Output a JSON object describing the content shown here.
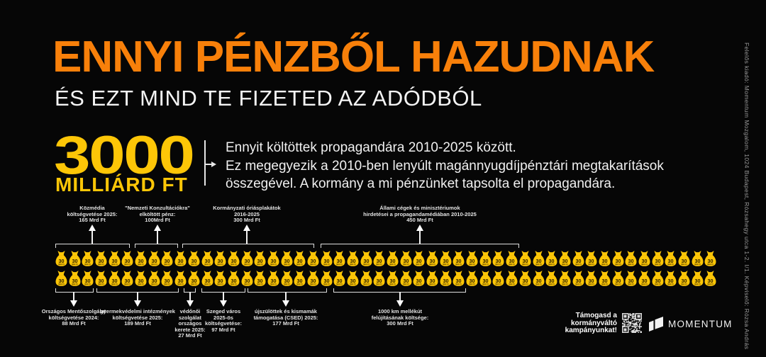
{
  "poster": {
    "headline": "ENNYI PÉNZBŐL HAZUDNAK",
    "subheadline": "ÉS EZT MIND TE FIZETED AZ ADÓDBÓL",
    "amount": {
      "number": "3000",
      "unit": "MILLIÁRD FT"
    },
    "description_lines": [
      "Ennyit költöttek propagandára 2010-2025 között.",
      "Ez megegyezik a 2010-ben lenyúlt magánnyugdíjpénztári megtakarítások",
      "összegével. A kormány a mi pénzünket tapsolta el propagandára."
    ],
    "imprint": "Felelős kiadó: Momentum Mozgalom, 1024 Budapest, Rózsahegy utca 1-2. I/1. Képviselő: Rózsa András",
    "cta_lines": [
      "Támogasd a",
      "kormányváltó",
      "kampányunkat!"
    ],
    "brand_name": "MOMENTUM",
    "colors": {
      "background": "#060606",
      "accent_orange": "#F8800A",
      "accent_yellow": "#FDC607",
      "text_white": "#F2F2F2"
    }
  },
  "chart_data": {
    "type": "pictogram",
    "title": "3000 MILLIÁRD FT — Ennyit költöttek propagandára 2010-2025 között",
    "icon": "money-bag",
    "icon_value": 30,
    "icon_label": "30",
    "icon_unit": "Mrd Ft",
    "total_value": 3000,
    "rows": 2,
    "icons_per_row": 50,
    "total_icons": 100,
    "top_groups": [
      {
        "value": 165,
        "label_lines": [
          "Közmédia",
          "költségvetése 2025:",
          "165 Mrd Ft"
        ]
      },
      {
        "value": 100,
        "label_lines": [
          "\"Nemzeti Konzultációkra\"",
          "elköltött pénz:",
          "100Mrd Ft"
        ]
      },
      {
        "value": 300,
        "label_lines": [
          "Kormányzati óriásplakátok",
          "2016-2025",
          "300 Mrd Ft"
        ]
      },
      {
        "value": 450,
        "label_lines": [
          "Állami cégek és minisztériumok",
          "hirdetései a propagandamédiában 2010-2025",
          "450 Mrd Ft"
        ]
      }
    ],
    "bottom_groups": [
      {
        "value": 88,
        "label_lines": [
          "Országos Mentőszolgálat",
          "költségvetése 2024:",
          "88 Mrd Ft"
        ]
      },
      {
        "value": 189,
        "label_lines": [
          "gyermekvédelmi intézmények",
          "költségvetése 2025:",
          "189 Mrd Ft"
        ]
      },
      {
        "value": 27,
        "label_lines": [
          "védőnői",
          "szolgálat",
          "országos",
          "kerete 2025:",
          "27 Mrd Ft"
        ]
      },
      {
        "value": 97,
        "label_lines": [
          "Szeged város",
          "2025-ös",
          "költségvetése:",
          "97 Mrd Ft"
        ]
      },
      {
        "value": 177,
        "label_lines": [
          "újszülöttek és kismamák",
          "támogatása (CSED) 2025:",
          "177 Mrd Ft"
        ]
      },
      {
        "value": 300,
        "label_lines": [
          "1000 km mellékút",
          "felújításának költsége:",
          "300 Mrd Ft"
        ]
      }
    ]
  }
}
